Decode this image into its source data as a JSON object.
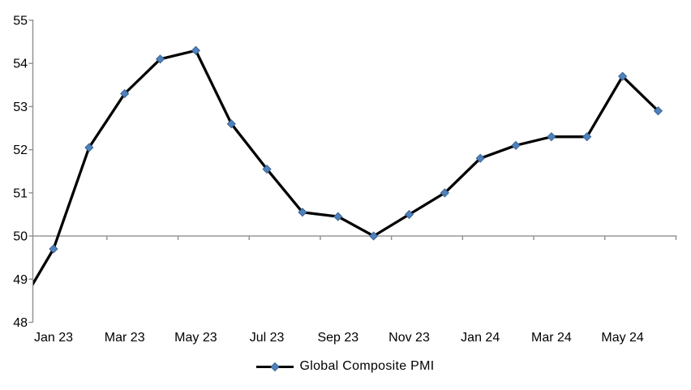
{
  "chart_data": {
    "type": "line",
    "title": "",
    "legend": "Global Composite PMI",
    "legend_position": "bottom",
    "x": [
      "Jan 23",
      "Feb 23",
      "Mar 23",
      "Apr 23",
      "May 23",
      "Jun 23",
      "Jul 23",
      "Aug 23",
      "Sep 23",
      "Oct 23",
      "Nov 23",
      "Dec 23",
      "Jan 24",
      "Feb 24",
      "Mar 24",
      "Apr 24",
      "May 24",
      "Jun 24"
    ],
    "values": [
      49.7,
      52.05,
      53.3,
      54.1,
      54.3,
      52.6,
      51.55,
      50.55,
      50.45,
      50.0,
      50.5,
      51.0,
      51.8,
      52.1,
      52.3,
      52.3,
      53.7,
      52.9
    ],
    "lead_in": {
      "value": 48.3,
      "months_before_first": 1,
      "value_at_left_edge": 48.9
    },
    "x_tick_labels": [
      "Jan 23",
      "Mar 23",
      "May 23",
      "Jul 23",
      "Sep 23",
      "Nov 23",
      "Jan 24",
      "Mar 24",
      "May 24"
    ],
    "x_label_interval": 2,
    "y_ticks": [
      48,
      49,
      50,
      51,
      52,
      53,
      54,
      55
    ],
    "ylim": [
      48,
      55
    ],
    "x_axis_cross": 50,
    "grid": false,
    "colors": {
      "line": "#000000",
      "marker": "#4f81bd",
      "marker_edge": "#3a6493",
      "axis": "#8f8f8f",
      "text": "#000000",
      "background": "#ffffff"
    }
  }
}
